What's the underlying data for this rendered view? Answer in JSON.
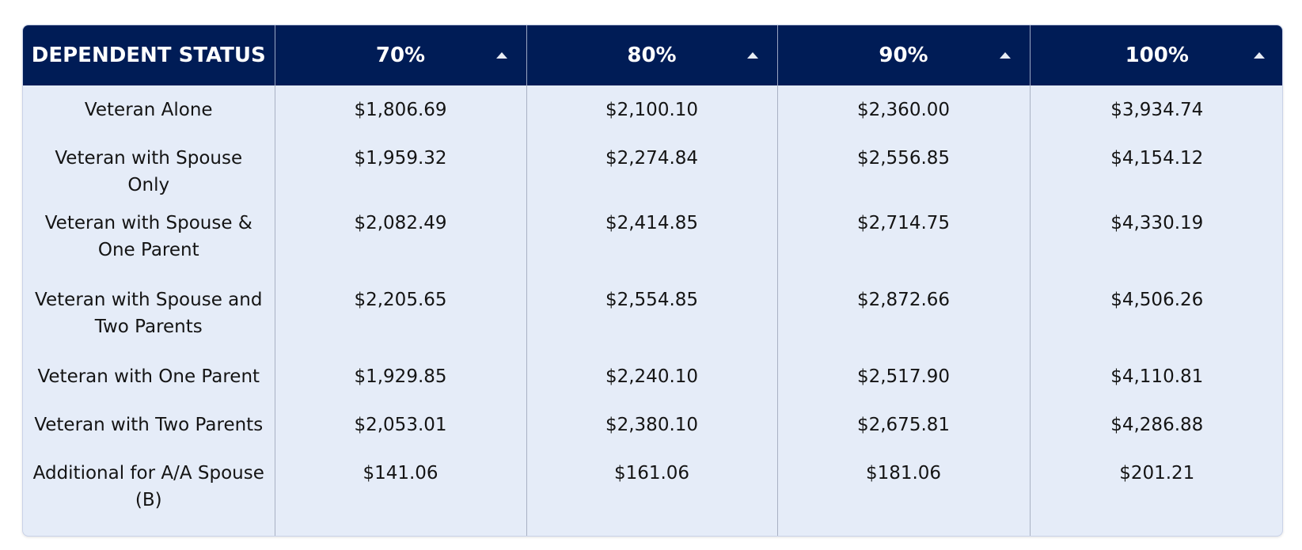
{
  "table": {
    "headers": [
      {
        "label": "DEPENDENT STATUS",
        "sortable": false
      },
      {
        "label": "70%",
        "sortable": true
      },
      {
        "label": "80%",
        "sortable": true
      },
      {
        "label": "90%",
        "sortable": true
      },
      {
        "label": "100%",
        "sortable": true
      }
    ],
    "rows": [
      {
        "status": "Veteran Alone",
        "p70": "$1,806.69",
        "p80": "$2,100.10",
        "p90": "$2,360.00",
        "p100": "$3,934.74"
      },
      {
        "status": "Veteran with Spouse Only",
        "p70": "$1,959.32",
        "p80": "$2,274.84",
        "p90": "$2,556.85",
        "p100": "$4,154.12"
      },
      {
        "status": "Veteran with Spouse & One Parent",
        "p70": "$2,082.49",
        "p80": "$2,414.85",
        "p90": "$2,714.75",
        "p100": "$4,330.19"
      },
      {
        "status": "Veteran with Spouse and Two Parents",
        "p70": "$2,205.65",
        "p80": "$2,554.85",
        "p90": "$2,872.66",
        "p100": "$4,506.26"
      },
      {
        "status": "Veteran with One Parent",
        "p70": "$1,929.85",
        "p80": "$2,240.10",
        "p90": "$2,517.90",
        "p100": "$4,110.81"
      },
      {
        "status": "Veteran with Two Parents",
        "p70": "$2,053.01",
        "p80": "$2,380.10",
        "p90": "$2,675.81",
        "p100": "$4,286.88"
      },
      {
        "status": "Additional for A/A Spouse (B)",
        "p70": "$141.06",
        "p80": "$161.06",
        "p90": "$181.06",
        "p100": "$201.21"
      }
    ]
  },
  "colors": {
    "header_bg": "#001c56",
    "body_bg": "#e5ecf8"
  },
  "icons": {
    "sort": "sort-ascending-icon"
  }
}
